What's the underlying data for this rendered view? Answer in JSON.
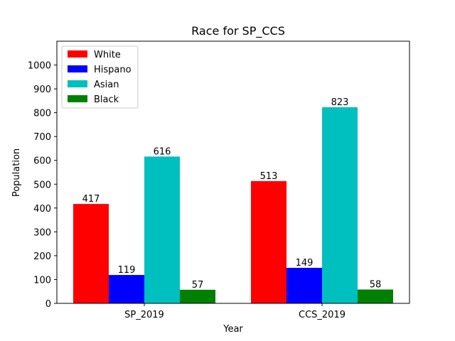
{
  "chart_data": {
    "type": "bar",
    "title": "Race for SP_CCS",
    "xlabel": "Year",
    "ylabel": "Population",
    "categories": [
      "SP_2019",
      "CCS_2019"
    ],
    "series": [
      {
        "name": "White",
        "color": "#ff0000",
        "values": [
          417,
          513
        ]
      },
      {
        "name": "Hispano",
        "color": "#0000ff",
        "values": [
          119,
          149
        ]
      },
      {
        "name": "Asian",
        "color": "#00bfbf",
        "values": [
          616,
          823
        ]
      },
      {
        "name": "Black",
        "color": "#008000",
        "values": [
          57,
          58
        ]
      }
    ],
    "ylim": [
      0,
      1100
    ],
    "yticks": [
      0,
      100,
      200,
      300,
      400,
      500,
      600,
      700,
      800,
      900,
      1000
    ],
    "grid": false,
    "legend_position": "top-left"
  }
}
